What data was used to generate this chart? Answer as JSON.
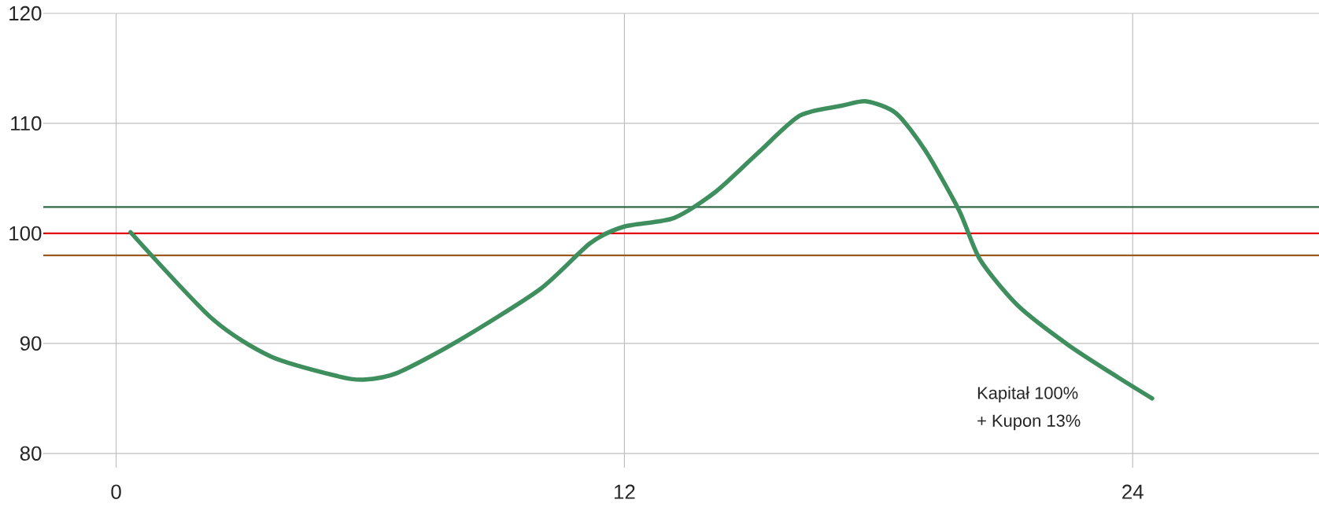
{
  "chart_data": {
    "type": "line",
    "xlim": [
      -1.72,
      28.4
    ],
    "ylim": [
      78.7,
      120
    ],
    "xticks": [
      0,
      12,
      24
    ],
    "yticks": [
      80,
      90,
      100,
      110,
      120
    ],
    "grid": true,
    "ref_lines": [
      {
        "axis": "y",
        "value": 102.4,
        "label": null,
        "color": "#2e6b45"
      },
      {
        "axis": "y",
        "value": 100,
        "label": null,
        "color": "#e00000"
      },
      {
        "axis": "y",
        "value": 98,
        "label": null,
        "color": "#9c5a1f"
      }
    ],
    "annotations": [
      "Kapitał 100%",
      "+ Kupon 13%"
    ],
    "series": [
      {
        "color": "#3f8f5e",
        "x": [
          0.34,
          2.28,
          3.66,
          5.25,
          5.84,
          6.63,
          8.02,
          10.0,
          11.19,
          11.98,
          13.17,
          14.16,
          15.15,
          16.14,
          17.13,
          17.72,
          18.42,
          19.11,
          19.9,
          20.4,
          21.3,
          22.5,
          23.66,
          24.46
        ],
        "values": [
          100.1,
          92.2,
          88.8,
          87.0,
          86.7,
          87.3,
          90.1,
          94.9,
          99.1,
          100.6,
          101.4,
          103.8,
          107.3,
          110.7,
          111.6,
          112.0,
          110.9,
          107.5,
          102.1,
          97.6,
          93.4,
          89.8,
          86.9,
          85.0
        ]
      }
    ]
  }
}
